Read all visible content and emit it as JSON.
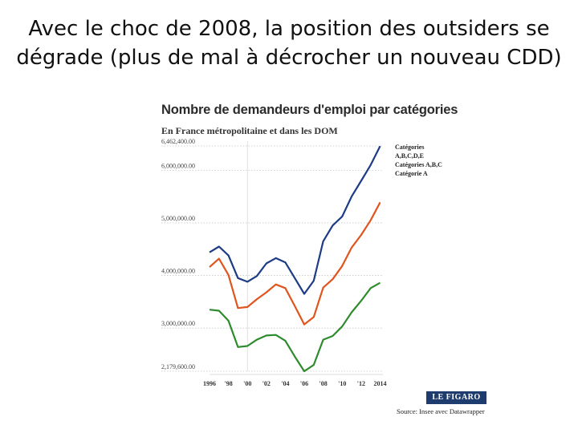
{
  "slide": {
    "title_line1": "Avec le choc de 2008, la position des outsiders se",
    "title_line2": "dégrade (plus de mal à décrocher un nouveau CDD)"
  },
  "chart_data": {
    "type": "line",
    "title": "Nombre de demandeurs d'emploi par catégories",
    "subtitle": "En France métropolitaine et dans les DOM",
    "xlabel": "",
    "ylabel": "",
    "x_ticks": [
      1996,
      1998,
      2000,
      2002,
      2004,
      2006,
      2008,
      2010,
      2012,
      2014
    ],
    "x_tick_labels": [
      "1996",
      "'98",
      "'00",
      "'02",
      "'04",
      "'06",
      "'08",
      "'10",
      "'12",
      "2014"
    ],
    "xlim": [
      1996,
      2014.3
    ],
    "y_ticks": [
      2179600,
      3000000,
      4000000,
      5000000,
      6000000,
      6462400
    ],
    "y_tick_labels": [
      "2,179,600.00",
      "3,000,000.00",
      "4,000,000.00",
      "5,000,000.00",
      "6,000,000.00",
      "6,462,400.00"
    ],
    "ylim": [
      2179600,
      6462400
    ],
    "legend_position": "top-right",
    "grid": "dotted-horizontal",
    "series": [
      {
        "name": "Catégories A,B,C,D,E",
        "color": "#1d3c84",
        "x": [
          1996,
          1997,
          1998,
          1999,
          2000,
          2001,
          2002,
          2003,
          2004,
          2005,
          2006,
          2007,
          2008,
          2009,
          2010,
          2011,
          2012,
          2013,
          2014
        ],
        "y": [
          4440000,
          4550000,
          4380000,
          3950000,
          3880000,
          3990000,
          4230000,
          4330000,
          4250000,
          3950000,
          3650000,
          3900000,
          4650000,
          4950000,
          5120000,
          5500000,
          5800000,
          6100000,
          6460000
        ]
      },
      {
        "name": "Catégories A,B,C",
        "color": "#e0541e",
        "x": [
          1996,
          1997,
          1998,
          1999,
          2000,
          2001,
          2002,
          2003,
          2004,
          2005,
          2006,
          2007,
          2008,
          2009,
          2010,
          2011,
          2012,
          2013,
          2014
        ],
        "y": [
          4160000,
          4320000,
          4010000,
          3380000,
          3400000,
          3550000,
          3680000,
          3830000,
          3760000,
          3420000,
          3070000,
          3210000,
          3770000,
          3930000,
          4180000,
          4530000,
          4770000,
          5050000,
          5390000
        ]
      },
      {
        "name": "Catégorie A",
        "color": "#2e8b2e",
        "x": [
          1996,
          1997,
          1998,
          1999,
          2000,
          2001,
          2002,
          2003,
          2004,
          2005,
          2006,
          2007,
          2008,
          2009,
          2010,
          2011,
          2012,
          2013,
          2014
        ],
        "y": [
          3350000,
          3330000,
          3140000,
          2640000,
          2660000,
          2780000,
          2860000,
          2870000,
          2760000,
          2460000,
          2180000,
          2300000,
          2780000,
          2850000,
          3030000,
          3300000,
          3520000,
          3760000,
          3860000
        ]
      }
    ],
    "source": "Source: Insee avec Datawrapper",
    "logo": "LE FIGARO"
  }
}
